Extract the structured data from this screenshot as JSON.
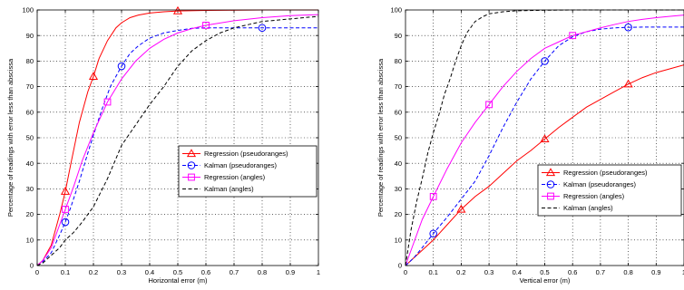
{
  "chart_data": [
    {
      "type": "line",
      "title": "",
      "xlabel": "Horizontal error (m)",
      "ylabel": "Percentage of readings with error less than abscissa",
      "xlim": [
        0,
        1
      ],
      "ylim": [
        0,
        100
      ],
      "xticks": [
        "0",
        "0.1",
        "0.2",
        "0.3",
        "0.4",
        "0.5",
        "0.6",
        "0.7",
        "0.8",
        "0.9",
        "1"
      ],
      "yticks": [
        "0",
        "10",
        "20",
        "30",
        "40",
        "50",
        "60",
        "70",
        "80",
        "90",
        "100"
      ],
      "grid": true,
      "legend_position": "center-right",
      "series": [
        {
          "name": "Regression (pseudoranges)",
          "color": "#ff0000",
          "dash": "solid",
          "marker": "triangle",
          "marker_x": [
            0.1,
            0.2,
            0.5
          ],
          "x": [
            0,
            0.02,
            0.05,
            0.08,
            0.1,
            0.12,
            0.15,
            0.18,
            0.2,
            0.22,
            0.25,
            0.28,
            0.3,
            0.33,
            0.36,
            0.4,
            0.45,
            0.5,
            0.6,
            0.7,
            0.8,
            0.9,
            1.0
          ],
          "y": [
            0,
            2,
            8,
            20,
            29,
            40,
            56,
            68,
            74,
            81,
            88,
            93,
            95,
            97,
            98,
            98.8,
            99.3,
            99.6,
            99.8,
            99.9,
            100,
            100,
            100
          ]
        },
        {
          "name": "Kalman (pseudoranges)",
          "color": "#0000ff",
          "dash": "dashed",
          "marker": "circle",
          "marker_x": [
            0.1,
            0.3,
            0.8
          ],
          "x": [
            0,
            0.02,
            0.05,
            0.08,
            0.1,
            0.12,
            0.15,
            0.18,
            0.2,
            0.23,
            0.26,
            0.3,
            0.33,
            0.36,
            0.4,
            0.45,
            0.5,
            0.55,
            0.6,
            0.7,
            0.8,
            0.9,
            1.0
          ],
          "y": [
            0,
            1.5,
            5,
            12,
            17,
            23,
            33,
            44,
            51,
            61,
            70,
            78,
            83,
            86,
            89,
            91,
            92,
            92.8,
            93,
            93,
            93,
            93,
            93
          ]
        },
        {
          "name": "Regression (angles)",
          "color": "#ff00ff",
          "dash": "solid",
          "marker": "square",
          "marker_x": [
            0.1,
            0.25,
            0.6
          ],
          "x": [
            0,
            0.02,
            0.05,
            0.08,
            0.1,
            0.13,
            0.16,
            0.2,
            0.25,
            0.3,
            0.35,
            0.4,
            0.45,
            0.5,
            0.55,
            0.6,
            0.7,
            0.8,
            0.9,
            1.0
          ],
          "y": [
            0,
            2,
            7,
            16,
            22,
            31,
            41,
            52,
            64,
            73,
            80,
            85,
            88.5,
            91,
            92.7,
            94,
            95.8,
            97,
            97.8,
            98.2
          ]
        },
        {
          "name": "Kalman (angles)",
          "color": "#000000",
          "dash": "dashed",
          "marker": "none",
          "marker_x": [],
          "x": [
            0,
            0.02,
            0.05,
            0.08,
            0.1,
            0.13,
            0.16,
            0.2,
            0.25,
            0.3,
            0.35,
            0.4,
            0.45,
            0.5,
            0.55,
            0.6,
            0.65,
            0.7,
            0.8,
            0.9,
            1.0
          ],
          "y": [
            0,
            1,
            4,
            7,
            10,
            13,
            17,
            23,
            34,
            47,
            55,
            63,
            70,
            78,
            84,
            88,
            91,
            93,
            95.5,
            96.5,
            97.5
          ]
        }
      ]
    },
    {
      "type": "line",
      "title": "",
      "xlabel": "Vertical error (m)",
      "ylabel": "Percentage of readings with error less than abscissa",
      "xlim": [
        0,
        1
      ],
      "ylim": [
        0,
        100
      ],
      "xticks": [
        "0",
        "0.1",
        "0.2",
        "0.3",
        "0.4",
        "0.5",
        "0.6",
        "0.7",
        "0.8",
        "0.9",
        "1"
      ],
      "yticks": [
        "0",
        "10",
        "20",
        "30",
        "40",
        "50",
        "60",
        "70",
        "80",
        "90",
        "100"
      ],
      "grid": true,
      "legend_position": "lower-right",
      "series": [
        {
          "name": "Regression (pseudoranges)",
          "color": "#ff0000",
          "dash": "solid",
          "marker": "triangle",
          "marker_x": [
            0.2,
            0.5,
            0.8
          ],
          "x": [
            0,
            0.03,
            0.06,
            0.1,
            0.15,
            0.2,
            0.25,
            0.3,
            0.35,
            0.4,
            0.45,
            0.5,
            0.55,
            0.6,
            0.65,
            0.7,
            0.75,
            0.8,
            0.85,
            0.9,
            0.95,
            1.0
          ],
          "y": [
            0,
            3,
            6,
            10,
            16,
            22,
            27,
            31,
            36,
            41,
            45,
            49.5,
            54,
            58,
            62,
            65,
            68,
            71,
            73.5,
            75.5,
            77,
            78.5
          ]
        },
        {
          "name": "Kalman (pseudoranges)",
          "color": "#0000ff",
          "dash": "dashed",
          "marker": "circle",
          "marker_x": [
            0.1,
            0.5,
            0.8
          ],
          "x": [
            0,
            0.03,
            0.06,
            0.1,
            0.15,
            0.2,
            0.25,
            0.3,
            0.35,
            0.4,
            0.45,
            0.5,
            0.55,
            0.6,
            0.65,
            0.7,
            0.75,
            0.8,
            0.85,
            0.9,
            1.0
          ],
          "y": [
            0,
            3,
            7,
            12.5,
            19,
            26,
            33,
            43,
            54,
            64,
            73,
            80,
            86,
            89.5,
            91.5,
            92.5,
            93,
            93.2,
            93.3,
            93.3,
            93.3
          ]
        },
        {
          "name": "Regression (angles)",
          "color": "#ff00ff",
          "dash": "solid",
          "marker": "square",
          "marker_x": [
            0.1,
            0.3,
            0.6
          ],
          "x": [
            0,
            0.03,
            0.06,
            0.1,
            0.15,
            0.2,
            0.25,
            0.3,
            0.35,
            0.4,
            0.45,
            0.5,
            0.55,
            0.6,
            0.65,
            0.7,
            0.75,
            0.8,
            0.85,
            0.9,
            0.95,
            1.0
          ],
          "y": [
            0,
            9,
            18,
            27,
            38,
            48,
            56,
            63,
            70,
            76,
            81,
            85,
            87.5,
            90,
            91.5,
            93,
            94.3,
            95.5,
            96.3,
            97,
            97.5,
            98
          ]
        },
        {
          "name": "Kalman (angles)",
          "color": "#000000",
          "dash": "dashed",
          "marker": "none",
          "marker_x": [],
          "x": [
            0,
            0.02,
            0.04,
            0.06,
            0.08,
            0.1,
            0.12,
            0.14,
            0.16,
            0.18,
            0.2,
            0.22,
            0.25,
            0.28,
            0.3,
            0.35,
            0.4,
            0.5,
            0.6,
            0.8,
            1.0
          ],
          "y": [
            0,
            14,
            25,
            34,
            44,
            52,
            59,
            67,
            73,
            80,
            86,
            91,
            95.5,
            97.5,
            98.5,
            99.3,
            99.7,
            99.9,
            100,
            100,
            100
          ]
        }
      ]
    }
  ]
}
